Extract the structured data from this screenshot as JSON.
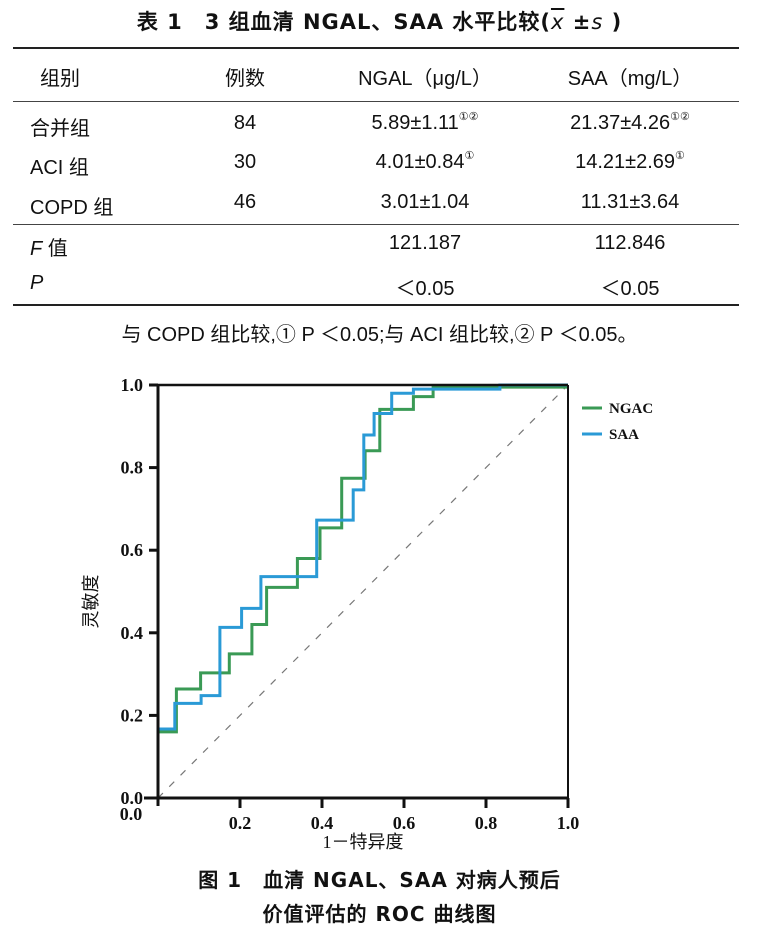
{
  "table": {
    "title_prefix": "表 1　3 组血清 NGAL、SAA 水平比较(",
    "title_xbar": "x",
    "title_pm": " ±",
    "title_s": "s",
    "title_suffix": " )",
    "headers": [
      "组别",
      "例数",
      "NGAL（μg/L）",
      "SAA（mg/L）"
    ],
    "rows": [
      {
        "group": "合并组",
        "n": "84",
        "ngal": "5.89±1.11",
        "ngal_mark": "①②",
        "saa": "21.37±4.26",
        "saa_mark": "①②"
      },
      {
        "group": "ACI 组",
        "n": "30",
        "ngal": "4.01±0.84",
        "ngal_mark": "①",
        "saa": "14.21±2.69",
        "saa_mark": "①"
      },
      {
        "group": "COPD 组",
        "n": "46",
        "ngal": "3.01±1.04",
        "ngal_mark": "",
        "saa": "11.31±3.64",
        "saa_mark": ""
      }
    ],
    "stats": [
      {
        "label_italic": "F",
        "label_rest": " 值",
        "ngal": "121.187",
        "saa": "112.846"
      },
      {
        "label_italic": "P",
        "label_rest": "",
        "ngal": "＜0.05",
        "saa": "＜0.05"
      }
    ],
    "footnote": "与 COPD 组比较,① P ＜0.05;与 ACI 组比较,② P ＜0.05。"
  },
  "figure": {
    "caption_line1": "图 1　血清 NGAL、SAA 对病人预后",
    "caption_line2": "价值评估的 ROC 曲线图"
  },
  "chart_data": {
    "type": "line",
    "title": "",
    "xlabel": "1－特异度",
    "ylabel": "灵敏度",
    "xlim": [
      0,
      1
    ],
    "ylim": [
      0,
      1
    ],
    "x_ticks": [
      "0.0",
      "0.2",
      "0.4",
      "0.6",
      "0.8",
      "1.0"
    ],
    "y_ticks": [
      "0.0",
      "0.2",
      "0.4",
      "0.6",
      "0.8",
      "1.0"
    ],
    "x_tick_values": [
      0,
      0.2,
      0.4,
      0.6,
      0.8,
      1.0
    ],
    "y_tick_values": [
      0,
      0.2,
      0.4,
      0.6,
      0.8,
      1.0
    ],
    "grid": false,
    "legend_position": "right-top",
    "reference_line": {
      "from": [
        0,
        0
      ],
      "to": [
        1,
        1
      ],
      "style": "dashed",
      "color": "#777777"
    },
    "series": [
      {
        "name": "NGAC",
        "color": "#3a9a55",
        "step": true,
        "points": [
          [
            0,
            0.16
          ],
          [
            0.045,
            0.16
          ],
          [
            0.045,
            0.264
          ],
          [
            0.104,
            0.264
          ],
          [
            0.104,
            0.303
          ],
          [
            0.174,
            0.303
          ],
          [
            0.174,
            0.349
          ],
          [
            0.229,
            0.349
          ],
          [
            0.229,
            0.42
          ],
          [
            0.265,
            0.42
          ],
          [
            0.265,
            0.51
          ],
          [
            0.34,
            0.51
          ],
          [
            0.34,
            0.58
          ],
          [
            0.395,
            0.58
          ],
          [
            0.395,
            0.654
          ],
          [
            0.448,
            0.654
          ],
          [
            0.448,
            0.774
          ],
          [
            0.505,
            0.774
          ],
          [
            0.505,
            0.841
          ],
          [
            0.541,
            0.841
          ],
          [
            0.541,
            0.941
          ],
          [
            0.623,
            0.941
          ],
          [
            0.623,
            0.972
          ],
          [
            0.671,
            0.972
          ],
          [
            0.671,
            0.995
          ],
          [
            1.0,
            0.995
          ]
        ]
      },
      {
        "name": "SAA",
        "color": "#2a9ad6",
        "step": true,
        "points": [
          [
            0,
            0.167
          ],
          [
            0.041,
            0.167
          ],
          [
            0.041,
            0.229
          ],
          [
            0.105,
            0.229
          ],
          [
            0.105,
            0.248
          ],
          [
            0.151,
            0.248
          ],
          [
            0.151,
            0.413
          ],
          [
            0.204,
            0.413
          ],
          [
            0.204,
            0.459
          ],
          [
            0.251,
            0.459
          ],
          [
            0.251,
            0.536
          ],
          [
            0.387,
            0.536
          ],
          [
            0.387,
            0.673
          ],
          [
            0.476,
            0.673
          ],
          [
            0.476,
            0.746
          ],
          [
            0.502,
            0.746
          ],
          [
            0.502,
            0.879
          ],
          [
            0.527,
            0.879
          ],
          [
            0.527,
            0.931
          ],
          [
            0.57,
            0.931
          ],
          [
            0.57,
            0.98
          ],
          [
            0.623,
            0.98
          ],
          [
            0.623,
            0.99
          ],
          [
            0.834,
            0.99
          ],
          [
            0.834,
            1.0
          ],
          [
            1.0,
            1.0
          ]
        ]
      }
    ]
  }
}
